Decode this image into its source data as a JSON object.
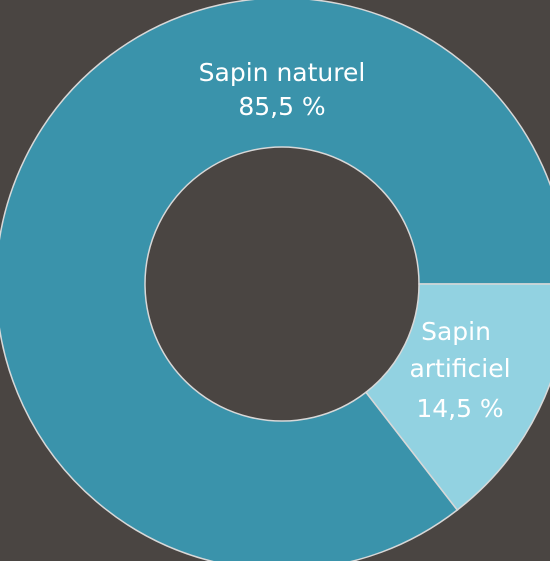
{
  "chart_data": {
    "type": "donut",
    "categories": [
      "Sapin naturel",
      "Sapin artificiel"
    ],
    "values": [
      85.5,
      14.5
    ],
    "value_labels": [
      "85,5 %",
      "14,5 %"
    ],
    "colors": [
      "#3a93ab",
      "#92d2e1"
    ]
  }
}
